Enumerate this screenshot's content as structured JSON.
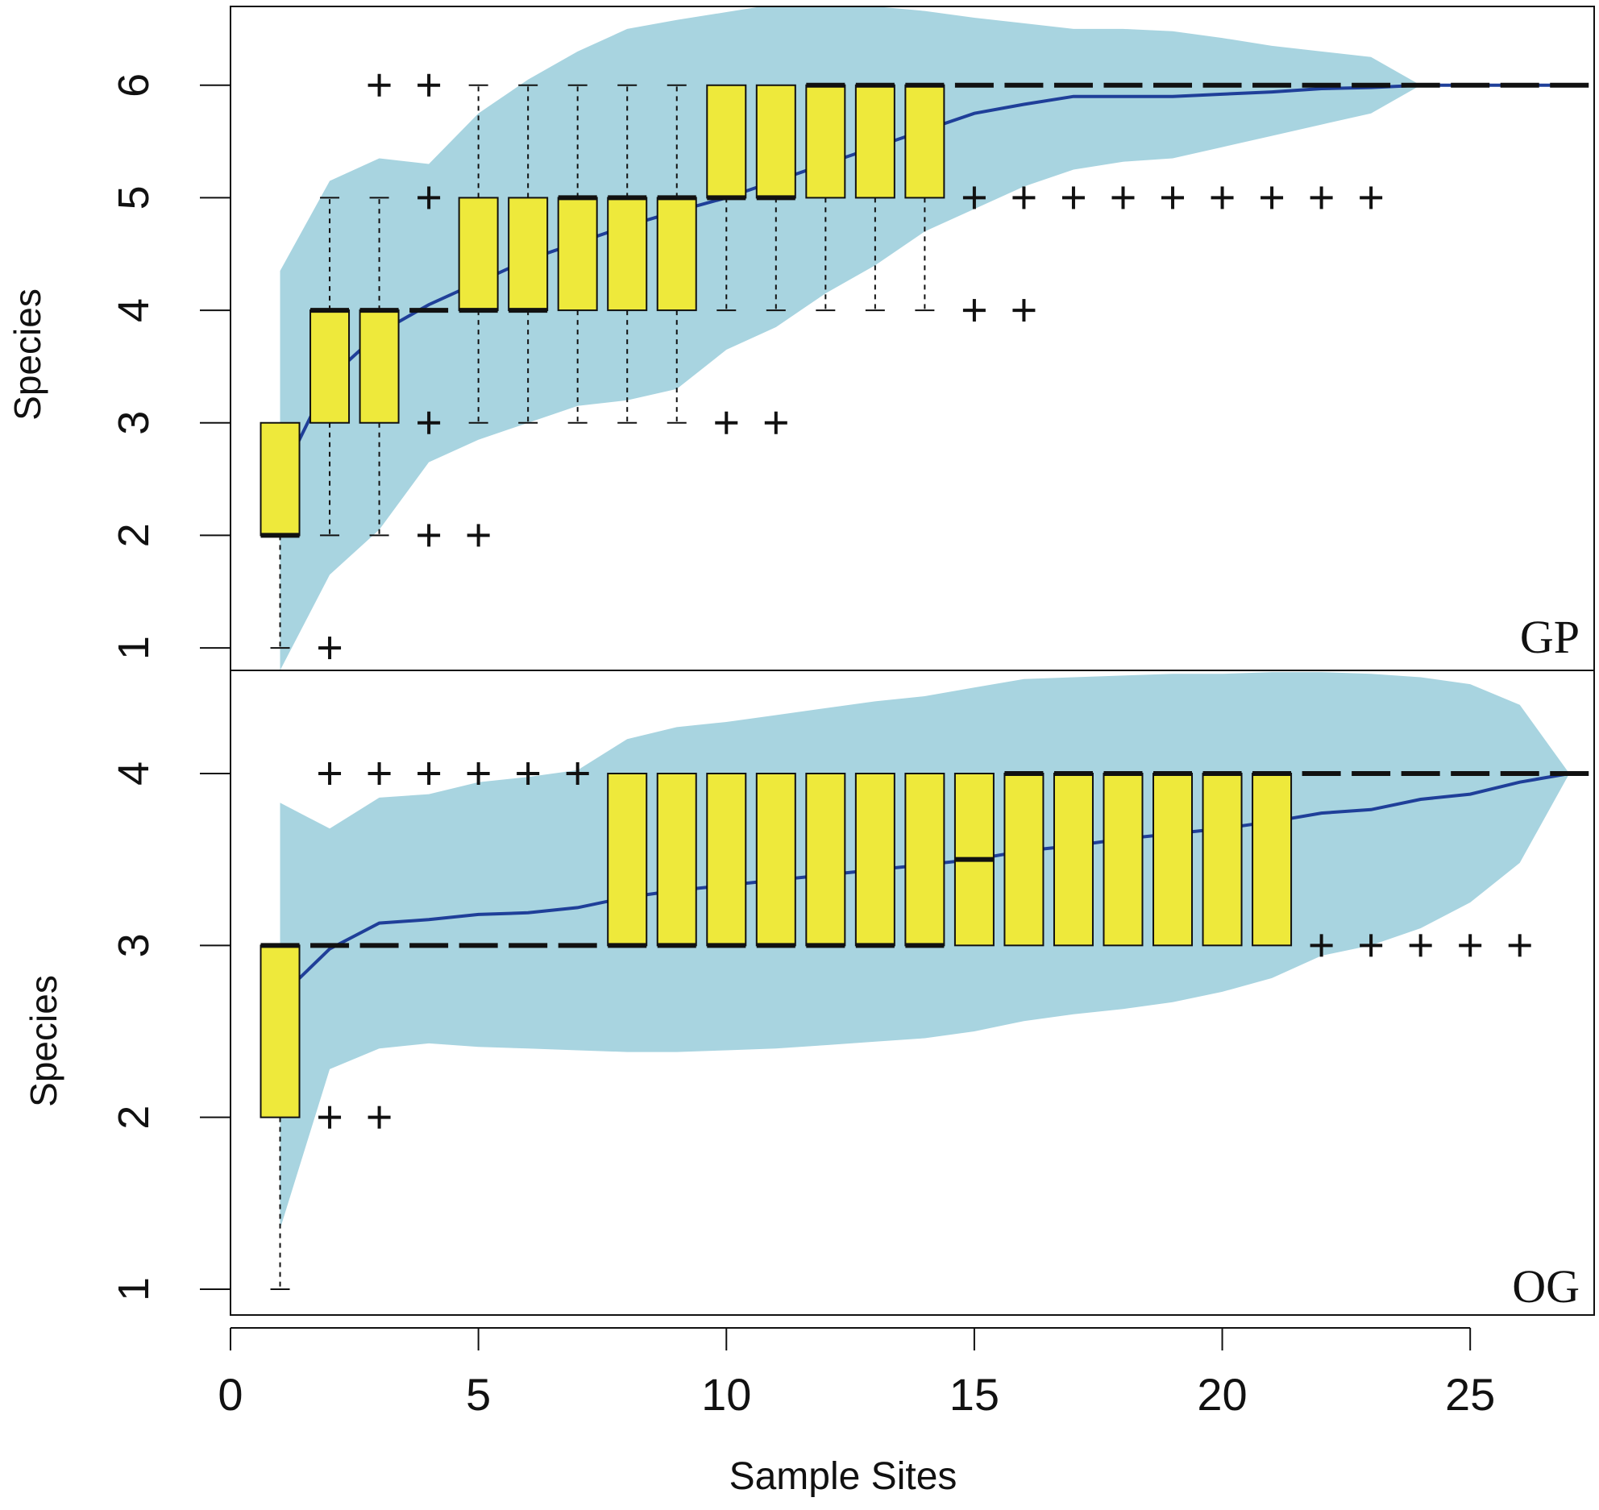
{
  "colors": {
    "envelope": "#a8d4e0",
    "box_fill": "#eee93b",
    "mean_line": "#1f3f99",
    "ink": "#111111"
  },
  "chart_data": [
    {
      "type": "box",
      "panel_label": "GP",
      "ylabel": "Species",
      "xlabel": "",
      "xlim": [
        0,
        27.5
      ],
      "ylim": [
        0.8,
        6.7
      ],
      "yticks": [
        1,
        2,
        3,
        4,
        5,
        6
      ],
      "boxes": [
        {
          "x": 1,
          "q1": 2,
          "median": 2,
          "q3": 3,
          "wlo": 1,
          "whi": 3
        },
        {
          "x": 2,
          "q1": 3,
          "median": 4,
          "q3": 4,
          "wlo": 2,
          "whi": 5
        },
        {
          "x": 3,
          "q1": 3,
          "median": 4,
          "q3": 4,
          "wlo": 2,
          "whi": 5
        },
        {
          "x": 4,
          "q1": 4,
          "median": 4,
          "q3": 4,
          "wlo": 4,
          "whi": 4
        },
        {
          "x": 5,
          "q1": 4,
          "median": 4,
          "q3": 5,
          "wlo": 3,
          "whi": 6
        },
        {
          "x": 6,
          "q1": 4,
          "median": 4,
          "q3": 5,
          "wlo": 3,
          "whi": 6
        },
        {
          "x": 7,
          "q1": 4,
          "median": 5,
          "q3": 5,
          "wlo": 3,
          "whi": 6
        },
        {
          "x": 8,
          "q1": 4,
          "median": 5,
          "q3": 5,
          "wlo": 3,
          "whi": 6
        },
        {
          "x": 9,
          "q1": 4,
          "median": 5,
          "q3": 5,
          "wlo": 3,
          "whi": 6
        },
        {
          "x": 10,
          "q1": 5,
          "median": 5,
          "q3": 6,
          "wlo": 4,
          "whi": 6
        },
        {
          "x": 11,
          "q1": 5,
          "median": 5,
          "q3": 6,
          "wlo": 4,
          "whi": 6
        },
        {
          "x": 12,
          "q1": 5,
          "median": 6,
          "q3": 6,
          "wlo": 4,
          "whi": 6
        },
        {
          "x": 13,
          "q1": 5,
          "median": 6,
          "q3": 6,
          "wlo": 4,
          "whi": 6
        },
        {
          "x": 14,
          "q1": 5,
          "median": 6,
          "q3": 6,
          "wlo": 4,
          "whi": 6
        },
        {
          "x": 15,
          "q1": 6,
          "median": 6,
          "q3": 6,
          "wlo": 6,
          "whi": 6
        },
        {
          "x": 16,
          "q1": 6,
          "median": 6,
          "q3": 6,
          "wlo": 6,
          "whi": 6
        },
        {
          "x": 17,
          "q1": 6,
          "median": 6,
          "q3": 6,
          "wlo": 6,
          "whi": 6
        },
        {
          "x": 18,
          "q1": 6,
          "median": 6,
          "q3": 6,
          "wlo": 6,
          "whi": 6
        },
        {
          "x": 19,
          "q1": 6,
          "median": 6,
          "q3": 6,
          "wlo": 6,
          "whi": 6
        },
        {
          "x": 20,
          "q1": 6,
          "median": 6,
          "q3": 6,
          "wlo": 6,
          "whi": 6
        },
        {
          "x": 21,
          "q1": 6,
          "median": 6,
          "q3": 6,
          "wlo": 6,
          "whi": 6
        },
        {
          "x": 22,
          "q1": 6,
          "median": 6,
          "q3": 6,
          "wlo": 6,
          "whi": 6
        },
        {
          "x": 23,
          "q1": 6,
          "median": 6,
          "q3": 6,
          "wlo": 6,
          "whi": 6
        },
        {
          "x": 24,
          "q1": 6,
          "median": 6,
          "q3": 6,
          "wlo": 6,
          "whi": 6
        },
        {
          "x": 25,
          "q1": 6,
          "median": 6,
          "q3": 6,
          "wlo": 6,
          "whi": 6
        },
        {
          "x": 26,
          "q1": 6,
          "median": 6,
          "q3": 6,
          "wlo": 6,
          "whi": 6
        },
        {
          "x": 27,
          "q1": 6,
          "median": 6,
          "q3": 6,
          "wlo": 6,
          "whi": 6
        }
      ],
      "outliers": [
        [
          2,
          1
        ],
        [
          3,
          6
        ],
        [
          4,
          6
        ],
        [
          4,
          5
        ],
        [
          4,
          3
        ],
        [
          4,
          2
        ],
        [
          5,
          2
        ],
        [
          10,
          3
        ],
        [
          11,
          3
        ],
        [
          15,
          5
        ],
        [
          16,
          5
        ],
        [
          17,
          5
        ],
        [
          18,
          5
        ],
        [
          19,
          5
        ],
        [
          20,
          5
        ],
        [
          21,
          5
        ],
        [
          22,
          5
        ],
        [
          23,
          5
        ],
        [
          15,
          4
        ],
        [
          16,
          4
        ]
      ],
      "mean": {
        "x": [
          1,
          2,
          3,
          4,
          5,
          6,
          7,
          8,
          9,
          10,
          11,
          12,
          13,
          14,
          15,
          16,
          17,
          18,
          19,
          20,
          21,
          22,
          23,
          24,
          25,
          26,
          27
        ],
        "y": [
          2.5,
          3.4,
          3.8,
          4.05,
          4.25,
          4.45,
          4.6,
          4.75,
          4.88,
          5.0,
          5.15,
          5.3,
          5.45,
          5.6,
          5.75,
          5.83,
          5.9,
          5.9,
          5.9,
          5.92,
          5.94,
          5.97,
          5.98,
          6.0,
          6.0,
          6.0,
          6.0
        ]
      },
      "envelope": {
        "x": [
          1,
          2,
          3,
          4,
          5,
          6,
          7,
          8,
          9,
          10,
          11,
          12,
          13,
          14,
          15,
          16,
          17,
          18,
          19,
          20,
          21,
          22,
          23,
          24,
          25,
          26,
          27
        ],
        "upper": [
          4.35,
          5.15,
          5.35,
          5.3,
          5.75,
          6.05,
          6.3,
          6.5,
          6.58,
          6.65,
          6.72,
          6.72,
          6.7,
          6.66,
          6.6,
          6.55,
          6.5,
          6.5,
          6.48,
          6.42,
          6.35,
          6.3,
          6.25,
          6.0,
          6.0,
          6.0,
          6.0
        ],
        "lower": [
          0.8,
          1.65,
          2.05,
          2.65,
          2.85,
          3.0,
          3.15,
          3.2,
          3.3,
          3.65,
          3.85,
          4.15,
          4.4,
          4.7,
          4.9,
          5.1,
          5.25,
          5.32,
          5.35,
          5.45,
          5.55,
          5.65,
          5.75,
          6.0,
          6.0,
          6.0,
          6.0
        ]
      }
    },
    {
      "type": "box",
      "panel_label": "OG",
      "ylabel": "Species",
      "xlabel": "Sample Sites",
      "xlim": [
        0,
        27.5
      ],
      "ylim": [
        0.85,
        4.6
      ],
      "yticks": [
        1,
        2,
        3,
        4
      ],
      "xticks": [
        0,
        5,
        10,
        15,
        20,
        25
      ],
      "boxes": [
        {
          "x": 1,
          "q1": 2,
          "median": 3,
          "q3": 3,
          "wlo": 1,
          "whi": 3
        },
        {
          "x": 2,
          "q1": 3,
          "median": 3,
          "q3": 3,
          "wlo": 3,
          "whi": 3
        },
        {
          "x": 3,
          "q1": 3,
          "median": 3,
          "q3": 3,
          "wlo": 3,
          "whi": 3
        },
        {
          "x": 4,
          "q1": 3,
          "median": 3,
          "q3": 3,
          "wlo": 3,
          "whi": 3
        },
        {
          "x": 5,
          "q1": 3,
          "median": 3,
          "q3": 3,
          "wlo": 3,
          "whi": 3
        },
        {
          "x": 6,
          "q1": 3,
          "median": 3,
          "q3": 3,
          "wlo": 3,
          "whi": 3
        },
        {
          "x": 7,
          "q1": 3,
          "median": 3,
          "q3": 3,
          "wlo": 3,
          "whi": 3
        },
        {
          "x": 8,
          "q1": 3,
          "median": 3,
          "q3": 4,
          "wlo": 3,
          "whi": 4
        },
        {
          "x": 9,
          "q1": 3,
          "median": 3,
          "q3": 4,
          "wlo": 3,
          "whi": 4
        },
        {
          "x": 10,
          "q1": 3,
          "median": 3,
          "q3": 4,
          "wlo": 3,
          "whi": 4
        },
        {
          "x": 11,
          "q1": 3,
          "median": 3,
          "q3": 4,
          "wlo": 3,
          "whi": 4
        },
        {
          "x": 12,
          "q1": 3,
          "median": 3,
          "q3": 4,
          "wlo": 3,
          "whi": 4
        },
        {
          "x": 13,
          "q1": 3,
          "median": 3,
          "q3": 4,
          "wlo": 3,
          "whi": 4
        },
        {
          "x": 14,
          "q1": 3,
          "median": 3,
          "q3": 4,
          "wlo": 3,
          "whi": 4
        },
        {
          "x": 15,
          "q1": 3,
          "median": 3.5,
          "q3": 4,
          "wlo": 3,
          "whi": 4
        },
        {
          "x": 16,
          "q1": 3,
          "median": 4,
          "q3": 4,
          "wlo": 3,
          "whi": 4
        },
        {
          "x": 17,
          "q1": 3,
          "median": 4,
          "q3": 4,
          "wlo": 3,
          "whi": 4
        },
        {
          "x": 18,
          "q1": 3,
          "median": 4,
          "q3": 4,
          "wlo": 3,
          "whi": 4
        },
        {
          "x": 19,
          "q1": 3,
          "median": 4,
          "q3": 4,
          "wlo": 3,
          "whi": 4
        },
        {
          "x": 20,
          "q1": 3,
          "median": 4,
          "q3": 4,
          "wlo": 3,
          "whi": 4
        },
        {
          "x": 21,
          "q1": 3,
          "median": 4,
          "q3": 4,
          "wlo": 3,
          "whi": 4
        },
        {
          "x": 22,
          "q1": 4,
          "median": 4,
          "q3": 4,
          "wlo": 4,
          "whi": 4
        },
        {
          "x": 23,
          "q1": 4,
          "median": 4,
          "q3": 4,
          "wlo": 4,
          "whi": 4
        },
        {
          "x": 24,
          "q1": 4,
          "median": 4,
          "q3": 4,
          "wlo": 4,
          "whi": 4
        },
        {
          "x": 25,
          "q1": 4,
          "median": 4,
          "q3": 4,
          "wlo": 4,
          "whi": 4
        },
        {
          "x": 26,
          "q1": 4,
          "median": 4,
          "q3": 4,
          "wlo": 4,
          "whi": 4
        },
        {
          "x": 27,
          "q1": 4,
          "median": 4,
          "q3": 4,
          "wlo": 4,
          "whi": 4
        }
      ],
      "outliers": [
        [
          2,
          4
        ],
        [
          3,
          4
        ],
        [
          4,
          4
        ],
        [
          5,
          4
        ],
        [
          6,
          4
        ],
        [
          7,
          4
        ],
        [
          2,
          2
        ],
        [
          3,
          2
        ],
        [
          22,
          3
        ],
        [
          23,
          3
        ],
        [
          24,
          3
        ],
        [
          25,
          3
        ],
        [
          26,
          3
        ]
      ],
      "mean": {
        "x": [
          1,
          2,
          3,
          4,
          5,
          6,
          7,
          8,
          9,
          10,
          11,
          12,
          13,
          14,
          15,
          16,
          17,
          18,
          19,
          20,
          21,
          22,
          23,
          24,
          25,
          26,
          27
        ],
        "y": [
          2.7,
          2.98,
          3.13,
          3.15,
          3.18,
          3.19,
          3.22,
          3.28,
          3.32,
          3.35,
          3.38,
          3.41,
          3.44,
          3.47,
          3.5,
          3.55,
          3.58,
          3.62,
          3.65,
          3.68,
          3.72,
          3.77,
          3.79,
          3.85,
          3.88,
          3.95,
          4.0
        ]
      },
      "envelope": {
        "x": [
          1,
          2,
          3,
          4,
          5,
          6,
          7,
          8,
          9,
          10,
          11,
          12,
          13,
          14,
          15,
          16,
          17,
          18,
          19,
          20,
          21,
          22,
          23,
          24,
          25,
          26,
          27
        ],
        "upper": [
          3.83,
          3.68,
          3.86,
          3.88,
          3.95,
          3.98,
          4.02,
          4.2,
          4.27,
          4.3,
          4.34,
          4.38,
          4.42,
          4.45,
          4.5,
          4.55,
          4.56,
          4.57,
          4.58,
          4.58,
          4.59,
          4.59,
          4.58,
          4.56,
          4.52,
          4.4,
          4.0
        ],
        "lower": [
          1.35,
          2.28,
          2.4,
          2.43,
          2.41,
          2.4,
          2.39,
          2.38,
          2.38,
          2.39,
          2.4,
          2.42,
          2.44,
          2.46,
          2.5,
          2.56,
          2.6,
          2.63,
          2.67,
          2.73,
          2.81,
          2.94,
          3.0,
          3.1,
          3.25,
          3.48,
          4.0
        ]
      }
    }
  ]
}
